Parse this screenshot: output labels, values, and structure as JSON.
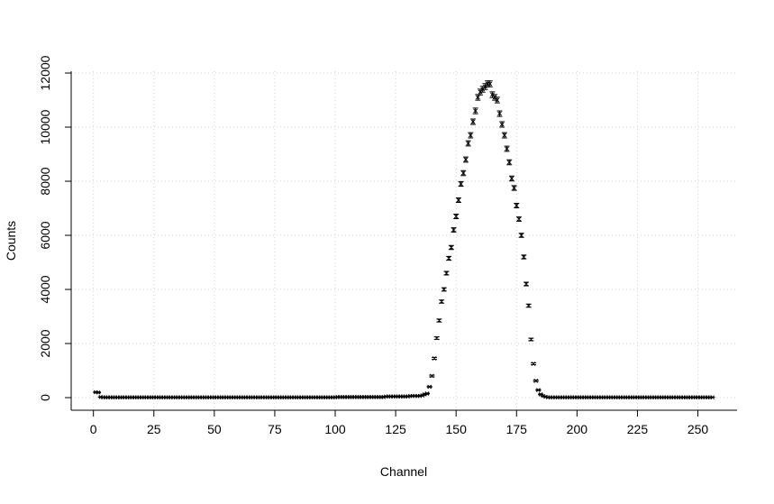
{
  "chart_data": {
    "type": "errorbar",
    "xlabel": "Channel",
    "ylabel": "Counts",
    "color": "#000000",
    "grid": true,
    "xlim": [
      -9.2,
      266.2
    ],
    "ylim": [
      -467,
      12067
    ],
    "xticks": [
      0,
      25,
      50,
      75,
      100,
      125,
      150,
      175,
      200,
      225,
      250
    ],
    "yticks": [
      0,
      2000,
      4000,
      6000,
      8000,
      10000,
      12000
    ],
    "x": [
      1,
      2,
      3,
      4,
      5,
      6,
      7,
      8,
      9,
      10,
      11,
      12,
      13,
      14,
      15,
      16,
      17,
      18,
      19,
      20,
      21,
      22,
      23,
      24,
      25,
      26,
      27,
      28,
      29,
      30,
      31,
      32,
      33,
      34,
      35,
      36,
      37,
      38,
      39,
      40,
      41,
      42,
      43,
      44,
      45,
      46,
      47,
      48,
      49,
      50,
      51,
      52,
      53,
      54,
      55,
      56,
      57,
      58,
      59,
      60,
      61,
      62,
      63,
      64,
      65,
      66,
      67,
      68,
      69,
      70,
      71,
      72,
      73,
      74,
      75,
      76,
      77,
      78,
      79,
      80,
      81,
      82,
      83,
      84,
      85,
      86,
      87,
      88,
      89,
      90,
      91,
      92,
      93,
      94,
      95,
      96,
      97,
      98,
      99,
      100,
      101,
      102,
      103,
      104,
      105,
      106,
      107,
      108,
      109,
      110,
      111,
      112,
      113,
      114,
      115,
      116,
      117,
      118,
      119,
      120,
      121,
      122,
      123,
      124,
      125,
      126,
      127,
      128,
      129,
      130,
      131,
      132,
      133,
      134,
      135,
      136,
      137,
      138,
      139,
      140,
      141,
      142,
      143,
      144,
      145,
      146,
      147,
      148,
      149,
      150,
      151,
      152,
      153,
      154,
      155,
      156,
      157,
      158,
      159,
      160,
      161,
      162,
      163,
      164,
      165,
      166,
      167,
      168,
      169,
      170,
      171,
      172,
      173,
      174,
      175,
      176,
      177,
      178,
      179,
      180,
      181,
      182,
      183,
      184,
      185,
      186,
      187,
      188,
      189,
      190,
      191,
      192,
      193,
      194,
      195,
      196,
      197,
      198,
      199,
      200,
      201,
      202,
      203,
      204,
      205,
      206,
      207,
      208,
      209,
      210,
      211,
      212,
      213,
      214,
      215,
      216,
      217,
      218,
      219,
      220,
      221,
      222,
      223,
      224,
      225,
      226,
      227,
      228,
      229,
      230,
      231,
      232,
      233,
      234,
      235,
      236,
      237,
      238,
      239,
      240,
      241,
      242,
      243,
      244,
      245,
      246,
      247,
      248,
      249,
      250,
      251,
      252,
      253,
      254,
      255,
      256
    ],
    "values": [
      200,
      190,
      20,
      10,
      10,
      10,
      10,
      10,
      10,
      10,
      10,
      10,
      10,
      10,
      10,
      10,
      10,
      10,
      10,
      10,
      10,
      10,
      10,
      10,
      10,
      10,
      10,
      10,
      10,
      10,
      10,
      10,
      10,
      10,
      10,
      10,
      10,
      10,
      10,
      10,
      10,
      10,
      10,
      10,
      10,
      10,
      10,
      10,
      10,
      10,
      10,
      10,
      10,
      10,
      10,
      10,
      10,
      10,
      10,
      10,
      10,
      10,
      10,
      10,
      10,
      10,
      10,
      10,
      10,
      10,
      10,
      10,
      10,
      10,
      10,
      10,
      10,
      10,
      10,
      10,
      10,
      10,
      10,
      10,
      10,
      10,
      10,
      10,
      10,
      10,
      10,
      10,
      10,
      10,
      10,
      10,
      10,
      10,
      10,
      10,
      20,
      20,
      20,
      20,
      20,
      20,
      20,
      20,
      20,
      20,
      20,
      20,
      20,
      20,
      20,
      20,
      20,
      20,
      20,
      20,
      40,
      40,
      40,
      40,
      40,
      40,
      40,
      40,
      40,
      40,
      60,
      60,
      60,
      60,
      60,
      80,
      120,
      150,
      400,
      800,
      1450,
      2200,
      2850,
      3550,
      4000,
      4600,
      5150,
      5550,
      6200,
      6700,
      7300,
      7900,
      8300,
      8800,
      9400,
      9700,
      10200,
      10600,
      11100,
      11300,
      11400,
      11500,
      11600,
      11600,
      11200,
      11100,
      11000,
      10500,
      10100,
      9700,
      9200,
      8700,
      8100,
      7750,
      7100,
      6600,
      6000,
      5200,
      4200,
      3400,
      2150,
      1250,
      620,
      280,
      120,
      60,
      30,
      10,
      10,
      10,
      10,
      10,
      10,
      10,
      10,
      10,
      10,
      10,
      10,
      10,
      10,
      10,
      10,
      10,
      10,
      10,
      10,
      10,
      10,
      10,
      10,
      10,
      10,
      10,
      10,
      10,
      10,
      10,
      10,
      10,
      10,
      10,
      10,
      10,
      10,
      10,
      10,
      10,
      10,
      10,
      10,
      10,
      10,
      10,
      10,
      10,
      10,
      10,
      10,
      10,
      10,
      10,
      10,
      10,
      10,
      10,
      10,
      10,
      10,
      10,
      10,
      10,
      10,
      10,
      10,
      10
    ],
    "errors": [
      14,
      14,
      4,
      3,
      3,
      3,
      3,
      3,
      3,
      3,
      3,
      3,
      3,
      3,
      3,
      3,
      3,
      3,
      3,
      3,
      3,
      3,
      3,
      3,
      3,
      3,
      3,
      3,
      3,
      3,
      3,
      3,
      3,
      3,
      3,
      3,
      3,
      3,
      3,
      3,
      3,
      3,
      3,
      3,
      3,
      3,
      3,
      3,
      3,
      3,
      3,
      3,
      3,
      3,
      3,
      3,
      3,
      3,
      3,
      3,
      3,
      3,
      3,
      3,
      3,
      3,
      3,
      3,
      3,
      3,
      3,
      3,
      3,
      3,
      3,
      3,
      3,
      3,
      3,
      3,
      3,
      3,
      3,
      3,
      3,
      3,
      3,
      3,
      3,
      3,
      3,
      3,
      3,
      3,
      3,
      3,
      3,
      3,
      3,
      3,
      4,
      4,
      4,
      4,
      4,
      4,
      4,
      4,
      4,
      4,
      4,
      4,
      4,
      4,
      4,
      4,
      4,
      4,
      4,
      4,
      6,
      6,
      6,
      6,
      6,
      6,
      6,
      6,
      6,
      6,
      8,
      8,
      8,
      8,
      8,
      9,
      11,
      12,
      20,
      28,
      38,
      47,
      53,
      60,
      63,
      68,
      72,
      74,
      79,
      82,
      85,
      89,
      91,
      94,
      97,
      98,
      101,
      103,
      105,
      106,
      107,
      107,
      108,
      108,
      106,
      105,
      105,
      102,
      100,
      98,
      96,
      93,
      90,
      88,
      84,
      81,
      77,
      72,
      65,
      58,
      46,
      35,
      25,
      17,
      11,
      8,
      5,
      3,
      3,
      3,
      3,
      3,
      3,
      3,
      3,
      3,
      3,
      3,
      3,
      3,
      3,
      3,
      3,
      3,
      3,
      3,
      3,
      3,
      3,
      3,
      3,
      3,
      3,
      3,
      3,
      3,
      3,
      3,
      3,
      3,
      3,
      3,
      3,
      3,
      3,
      3,
      3,
      3,
      3,
      3,
      3,
      3,
      3,
      3,
      3,
      3,
      3,
      3,
      3,
      3,
      3,
      3,
      3,
      3,
      3,
      3,
      3,
      3,
      3,
      3,
      3,
      3,
      3,
      3,
      3,
      3
    ]
  }
}
